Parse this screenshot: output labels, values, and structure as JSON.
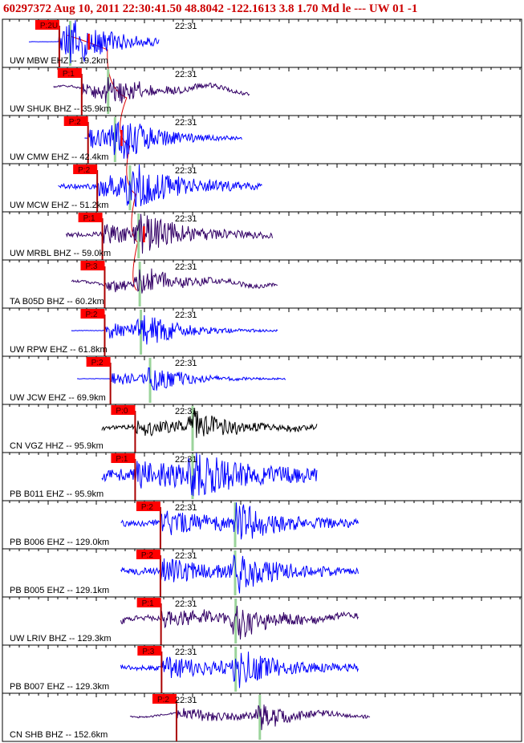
{
  "header": {
    "title": "60297372 Aug 10, 2011 22:30:41.50   48.8042 -122.1613  3.8 1.70 Md le ---  UW 01   -1"
  },
  "chart_data": {
    "type": "seismogram",
    "time_label": "22:31",
    "x_unit": "seconds after origin",
    "colors": {
      "frame": "#000000",
      "pick_box": "#ff0000",
      "pick_line": "#aa0000",
      "travel_curve": "#dd0000",
      "s_marker": "#9bd49b",
      "red_tick": "#ff0000"
    },
    "traces": [
      {
        "label": "UW MBW EHZ -- 19.2km",
        "pick": "P:2U",
        "color": "#0000ff",
        "amp": 0.9,
        "noise": 0.006,
        "drift": 0,
        "start": -2.8,
        "end": 19.9,
        "p_time": 2.5,
        "s_time": 4.4,
        "red_tick": 7.6
      },
      {
        "label": "UW SHUK BHZ -- 35.9km",
        "pick": "P:1",
        "color": "#330066",
        "amp": 0.55,
        "noise": 0.05,
        "drift": 0.22,
        "start": 1.5,
        "end": 35.7,
        "p_time": 6.4,
        "s_time": 11.0
      },
      {
        "label": "UW CMW EHZ -- 42.4km",
        "pick": "P:2",
        "color": "#0000ff",
        "amp": 0.95,
        "noise": 0.008,
        "drift": 0,
        "start": 6.9,
        "end": 34.4,
        "p_time": 7.5,
        "s_time": 12.2,
        "red_tick": 13.3
      },
      {
        "label": "UW MCW EHZ -- 51.2km",
        "pick": "P:2",
        "color": "#0000ff",
        "amp": 0.9,
        "noise": 0.12,
        "drift": 0,
        "start": 2.3,
        "end": 37.9,
        "p_time": 9.1,
        "s_time": 14.8
      },
      {
        "label": "UW MRBL BHZ -- 59.0km",
        "pick": "P:1",
        "color": "#330066",
        "amp": 0.75,
        "noise": 0.1,
        "drift": 0.08,
        "start": 3.7,
        "end": 39.7,
        "p_time": 10.0,
        "s_time": 16.3,
        "red_tick": 17.2
      },
      {
        "label": "TA B05D BHZ -- 60.2km",
        "pick": "P:3",
        "color": "#330066",
        "amp": 0.5,
        "noise": 0.06,
        "drift": 0.18,
        "start": 4.6,
        "end": 40.6,
        "p_time": 10.4,
        "s_time": 16.5
      },
      {
        "label": "UW RPW EHZ -- 61.8km",
        "pick": "P:2",
        "color": "#0000ff",
        "amp": 0.7,
        "noise": 0.012,
        "drift": 0,
        "start": 4.6,
        "end": 40.6,
        "p_time": 10.4,
        "s_time": 16.7
      },
      {
        "label": "UW JCW EHZ -- 69.9km",
        "pick": "P:2",
        "color": "#0000ff",
        "amp": 0.55,
        "noise": 0.008,
        "drift": 0,
        "start": 5.6,
        "end": 42.0,
        "p_time": 11.4,
        "s_time": 18.3
      },
      {
        "label": "CN VGZ HHZ -- 95.9km",
        "pick": "P:0",
        "color": "#000000",
        "amp": 0.55,
        "noise": 0.1,
        "drift": 0.14,
        "start": 9.9,
        "end": 47.4,
        "p_time": 15.7,
        "s_time": 25.7
      },
      {
        "label": "PB B011 EHZ -- 95.9km",
        "pick": "P:1",
        "color": "#0000ff",
        "amp": 0.9,
        "noise": 0.28,
        "drift": 0,
        "start": 9.9,
        "end": 47.4,
        "p_time": 15.7,
        "s_time": 25.7
      },
      {
        "label": "PB B006 EHZ -- 129.0km",
        "pick": "P:2",
        "color": "#0000ff",
        "amp": 0.85,
        "noise": 0.15,
        "drift": 0,
        "start": 13.2,
        "end": 54.6,
        "p_time": 20.1,
        "s_time": 33.1
      },
      {
        "label": "PB B005 EHZ -- 129.1km",
        "pick": "P:2",
        "color": "#0000ff",
        "amp": 0.85,
        "noise": 0.15,
        "drift": 0,
        "start": 13.2,
        "end": 54.6,
        "p_time": 20.1,
        "s_time": 33.1
      },
      {
        "label": "UW LRIV BHZ -- 129.3km",
        "pick": "P:1",
        "color": "#330066",
        "amp": 0.6,
        "noise": 0.12,
        "drift": 0.22,
        "start": 13.2,
        "end": 54.6,
        "p_time": 20.2,
        "s_time": 33.2
      },
      {
        "label": "PB B007 EHZ -- 129.3km",
        "pick": "P:3",
        "color": "#0000ff",
        "amp": 0.8,
        "noise": 0.12,
        "drift": 0,
        "start": 13.2,
        "end": 54.6,
        "p_time": 20.3,
        "s_time": 33.2
      },
      {
        "label": "CN SHB BHZ -- 152.6km",
        "pick": "P:2",
        "color": "#330066",
        "amp": 0.55,
        "noise": 0.04,
        "drift": 0.12,
        "start": 14.8,
        "end": 56.6,
        "p_time": 22.9,
        "s_time": 37.4
      }
    ]
  }
}
